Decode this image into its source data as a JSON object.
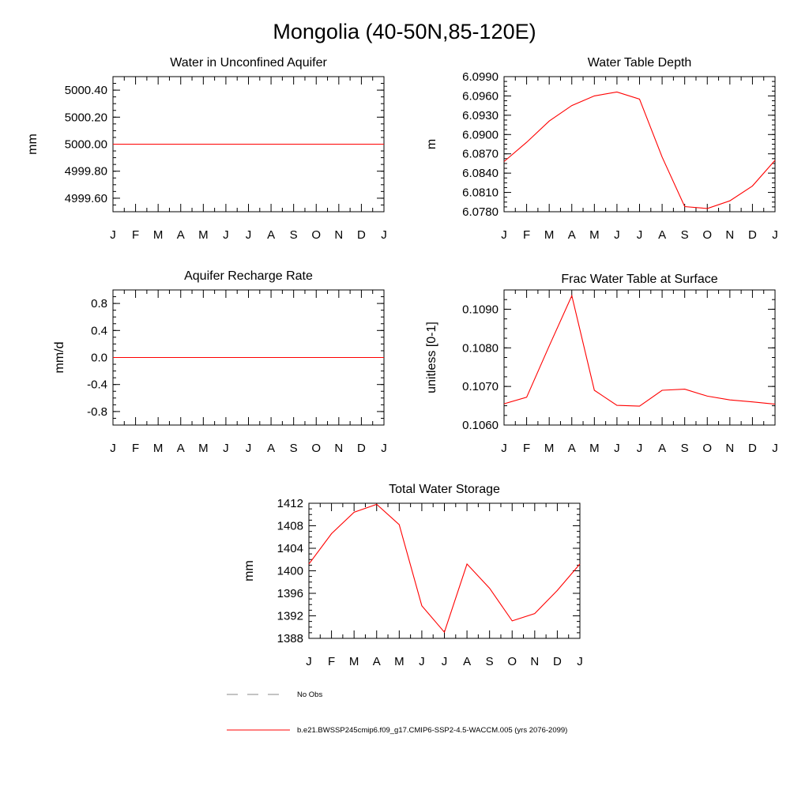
{
  "figure_title": "Mongolia (40-50N,85-120E)",
  "colors": {
    "model_line": "#ff0000",
    "obs_line": "#888888",
    "frame": "#000000"
  },
  "legend": {
    "obs_label": "No Obs",
    "model_label": "b.e21.BWSSP245cmip6.f09_g17.CMIP6-SSP2-4.5-WACCM.005 (yrs 2076-2099)"
  },
  "chart_data": [
    {
      "id": "aquifer",
      "type": "line",
      "title": "Water in Unconfined Aquifer",
      "xlabel": "",
      "ylabel": "mm",
      "categories": [
        "J",
        "F",
        "M",
        "A",
        "M",
        "J",
        "J",
        "A",
        "S",
        "O",
        "N",
        "D",
        "J"
      ],
      "ylim": [
        4999.5,
        5000.5
      ],
      "yticks": [
        4999.6,
        4999.8,
        5000.0,
        5000.2,
        5000.4
      ],
      "ytick_labels": [
        "4999.60",
        "4999.80",
        "5000.00",
        "5000.20",
        "5000.40"
      ],
      "series": [
        {
          "name": "model",
          "values": [
            5000,
            5000,
            5000,
            5000,
            5000,
            5000,
            5000,
            5000,
            5000,
            5000,
            5000,
            5000,
            5000
          ]
        }
      ]
    },
    {
      "id": "wtd",
      "type": "line",
      "title": "Water Table Depth",
      "xlabel": "",
      "ylabel": "m",
      "categories": [
        "J",
        "F",
        "M",
        "A",
        "M",
        "J",
        "J",
        "A",
        "S",
        "O",
        "N",
        "D",
        "J"
      ],
      "ylim": [
        6.078,
        6.099
      ],
      "yticks": [
        6.078,
        6.081,
        6.084,
        6.087,
        6.09,
        6.093,
        6.096,
        6.099
      ],
      "ytick_labels": [
        "6.0780",
        "6.0810",
        "6.0840",
        "6.0870",
        "6.0900",
        "6.0930",
        "6.0960",
        "6.0990"
      ],
      "series": [
        {
          "name": "model",
          "values": [
            6.0858,
            6.0888,
            6.0921,
            6.0945,
            6.096,
            6.0966,
            6.0955,
            6.0865,
            6.0788,
            6.0785,
            6.0797,
            6.082,
            6.086
          ]
        }
      ]
    },
    {
      "id": "recharge",
      "type": "line",
      "title": "Aquifer Recharge Rate",
      "xlabel": "",
      "ylabel": "mm/d",
      "categories": [
        "J",
        "F",
        "M",
        "A",
        "M",
        "J",
        "J",
        "A",
        "S",
        "O",
        "N",
        "D",
        "J"
      ],
      "ylim": [
        -1.0,
        1.0
      ],
      "yticks": [
        -0.8,
        -0.4,
        0.0,
        0.4,
        0.8
      ],
      "ytick_labels": [
        "-0.8",
        "-0.4",
        "0.0",
        "0.4",
        "0.8"
      ],
      "series": [
        {
          "name": "model",
          "values": [
            0,
            0,
            0,
            0,
            0,
            0,
            0,
            0,
            0,
            0,
            0,
            0,
            0
          ]
        }
      ]
    },
    {
      "id": "fwts",
      "type": "line",
      "title": "Frac Water Table at Surface",
      "xlabel": "",
      "ylabel": "unitless [0-1]",
      "categories": [
        "J",
        "F",
        "M",
        "A",
        "M",
        "J",
        "J",
        "A",
        "S",
        "O",
        "N",
        "D",
        "J"
      ],
      "ylim": [
        0.106,
        0.1095
      ],
      "yticks": [
        0.106,
        0.107,
        0.108,
        0.109
      ],
      "ytick_labels": [
        "0.1060",
        "0.1070",
        "0.1080",
        "0.1090"
      ],
      "series": [
        {
          "name": "model",
          "values": [
            0.10655,
            0.10672,
            0.10805,
            0.10935,
            0.1069,
            0.10651,
            0.10649,
            0.1069,
            0.10693,
            0.10675,
            0.10665,
            0.1066,
            0.10654
          ]
        }
      ]
    },
    {
      "id": "tws",
      "type": "line",
      "title": "Total Water Storage",
      "xlabel": "",
      "ylabel": "mm",
      "categories": [
        "J",
        "F",
        "M",
        "A",
        "M",
        "J",
        "J",
        "A",
        "S",
        "O",
        "N",
        "D",
        "J"
      ],
      "ylim": [
        1388,
        1412
      ],
      "yticks": [
        1388,
        1392,
        1396,
        1400,
        1404,
        1408,
        1412
      ],
      "ytick_labels": [
        "1388",
        "1392",
        "1396",
        "1400",
        "1404",
        "1408",
        "1412"
      ],
      "series": [
        {
          "name": "model",
          "values": [
            1401.2,
            1406.6,
            1410.4,
            1411.8,
            1408.2,
            1393.8,
            1389.1,
            1401.2,
            1396.9,
            1391.1,
            1392.4,
            1396.5,
            1401.2
          ]
        }
      ]
    }
  ]
}
